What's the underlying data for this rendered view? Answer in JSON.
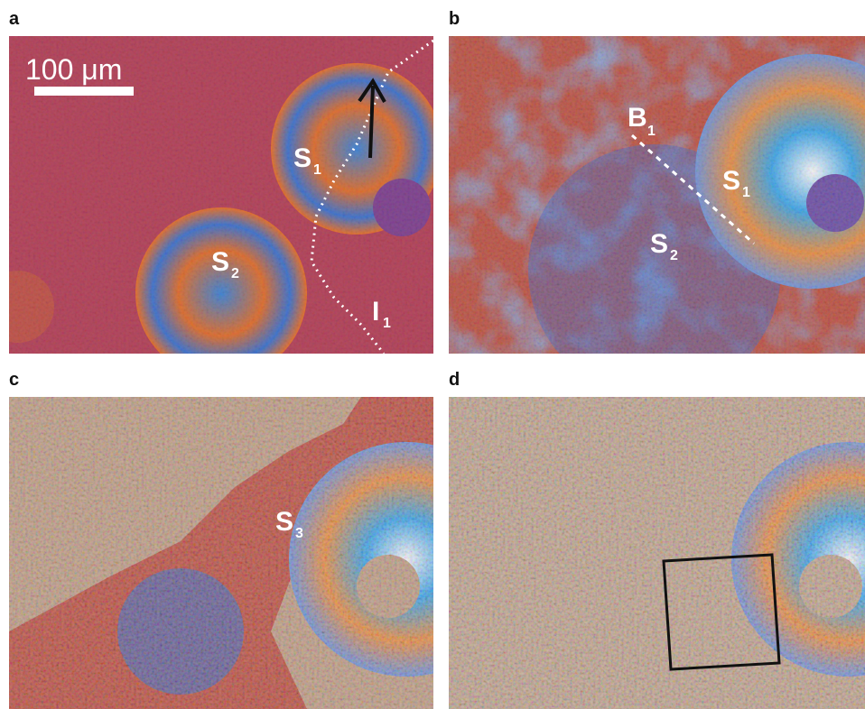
{
  "panels": [
    {
      "letter": "a",
      "scale_bar": "100 μm",
      "labels": [
        {
          "text": "S",
          "sub": "1"
        },
        {
          "text": "S",
          "sub": "2"
        },
        {
          "text": "I",
          "sub": "1"
        }
      ]
    },
    {
      "letter": "b",
      "labels": [
        {
          "text": "B",
          "sub": "1"
        },
        {
          "text": "S",
          "sub": "1"
        },
        {
          "text": "S",
          "sub": "2"
        }
      ]
    },
    {
      "letter": "c",
      "labels": [
        {
          "text": "S",
          "sub": "3"
        }
      ]
    },
    {
      "letter": "d",
      "labels": []
    }
  ]
}
